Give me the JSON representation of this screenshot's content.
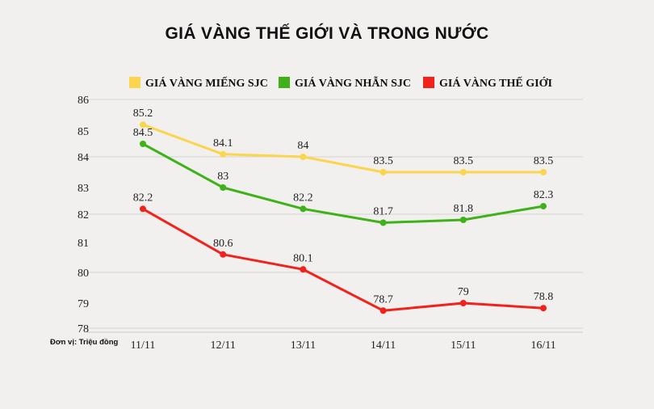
{
  "chart_data": {
    "type": "line",
    "title": "GIÁ VÀNG THẾ GIỚI VÀ TRONG NƯỚC",
    "unit_note": "Đơn vị: Triệu đồng",
    "categories": [
      "11/11",
      "12/11",
      "13/11",
      "14/11",
      "15/11",
      "16/11"
    ],
    "y_ticks": [
      "78",
      "79",
      "80",
      "81",
      "82",
      "83",
      "84",
      "85",
      "86"
    ],
    "ylim": [
      78,
      86
    ],
    "grid": true,
    "legend_position": "top",
    "series": [
      {
        "name": "GIÁ VÀNG MIẾNG SJC",
        "color": "#fbd54e",
        "values": [
          85.2,
          84.1,
          84,
          83.5,
          83.5,
          83.5
        ],
        "labels": [
          "85.2",
          "84.1",
          "84",
          "83.5",
          "83.5",
          "83.5"
        ]
      },
      {
        "name": "GIÁ VÀNG NHẪN SJC",
        "color": "#3fb119",
        "values": [
          84.5,
          83,
          82.2,
          81.7,
          81.8,
          82.3
        ],
        "labels": [
          "84.5",
          "83",
          "82.2",
          "81.7",
          "81.8",
          "82.3"
        ]
      },
      {
        "name": "GIÁ VÀNG THẾ GIỚI",
        "color": "#f2211c",
        "values": [
          82.2,
          80.6,
          80.1,
          78.7,
          79,
          78.8
        ],
        "labels": [
          "82.2",
          "80.6",
          "80.1",
          "78.7",
          "79",
          "78.8"
        ]
      }
    ]
  }
}
